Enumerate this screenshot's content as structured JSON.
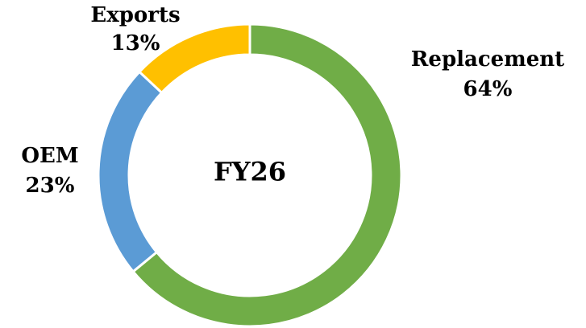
{
  "chart_data": {
    "type": "donut",
    "title": "FY26",
    "categories": [
      "Replacement",
      "OEM",
      "Exports"
    ],
    "values": [
      64,
      23,
      13
    ],
    "value_labels": [
      "64%",
      "23%",
      "13%"
    ],
    "colors": [
      "#70ad47",
      "#5b9bd5",
      "#ffc000"
    ]
  }
}
